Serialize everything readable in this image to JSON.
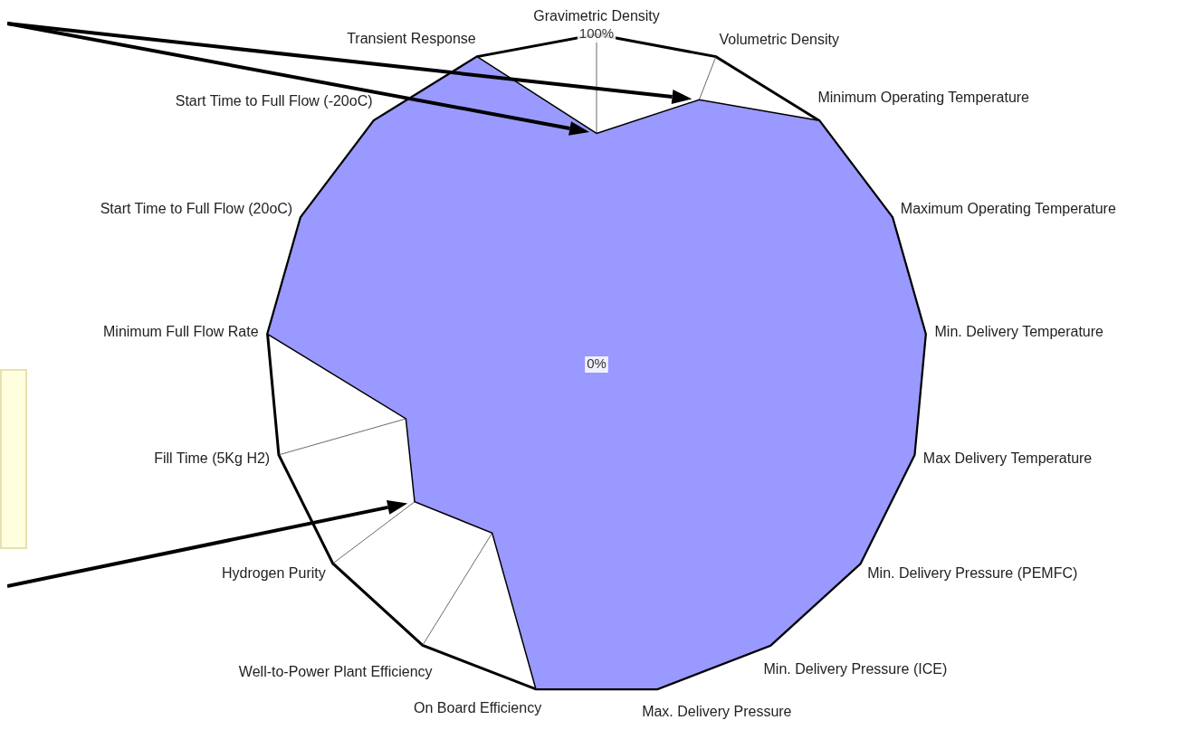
{
  "chart_data": {
    "type": "radar",
    "categories": [
      "Gravimetric Density",
      "Volumetric Density",
      "Minimum Operating Temperature",
      "Maximum Operating Temperature",
      "Min. Delivery Temperature",
      "Max Delivery Temperature",
      "Min. Delivery Pressure (PEMFC)",
      "Min. Delivery Pressure (ICE)",
      "Max. Delivery Pressure",
      "On Board Efficiency",
      "Well-to-Power Plant Efficiency",
      "Hydrogen Purity",
      "Fill Time (5Kg H2)",
      "Minimum Full Flow Rate",
      "Start Time to Full Flow (20oC)",
      "Start Time to Full Flow (-20oC)",
      "Transient Response"
    ],
    "series": [
      {
        "color": "#9999ff",
        "values": [
          70,
          86,
          100,
          100,
          100,
          100,
          100,
          100,
          100,
          100,
          60,
          69,
          60,
          100,
          100,
          100,
          100
        ]
      }
    ],
    "ylim": [
      0,
      100
    ],
    "yticks": [
      {
        "value": 0,
        "label": "0%"
      },
      {
        "value": 100,
        "label": "100%"
      }
    ],
    "grid": true,
    "legend": false,
    "marker": "none"
  }
}
